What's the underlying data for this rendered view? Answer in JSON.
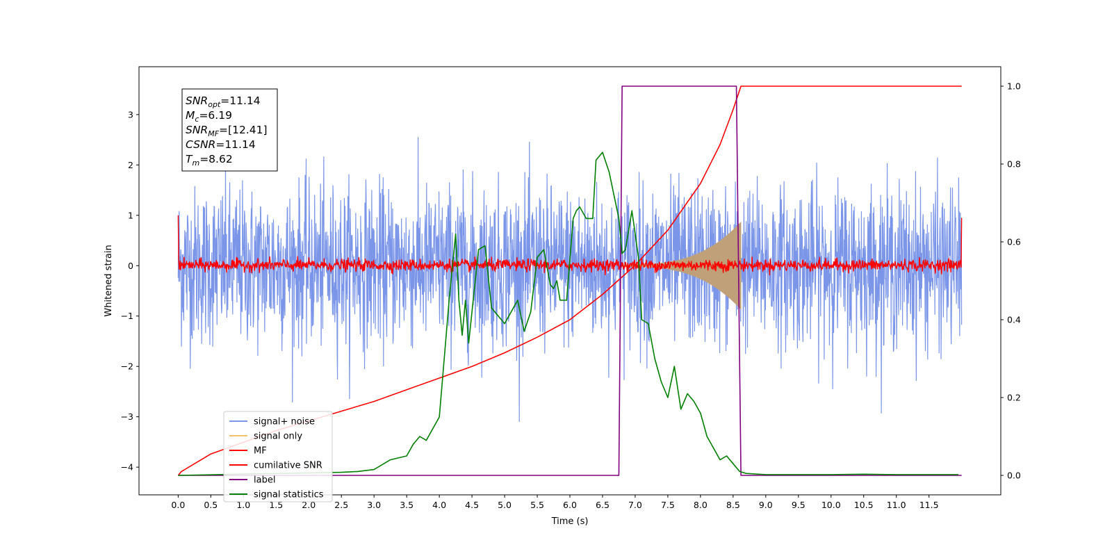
{
  "chart_data": {
    "type": "line",
    "xlabel": "Time (s)",
    "ylabel": "Whitened strain",
    "xlim": [
      -0.6,
      12.6
    ],
    "ylim": [
      -4.55,
      3.95
    ],
    "y2lim": [
      -0.05,
      1.05
    ],
    "x_ticks": [
      "0.0",
      "0.5",
      "1.0",
      "1.5",
      "2.0",
      "2.5",
      "3.0",
      "3.5",
      "4.0",
      "4.5",
      "5.0",
      "5.5",
      "6.0",
      "6.5",
      "7.0",
      "7.5",
      "8.0",
      "8.5",
      "9.0",
      "9.5",
      "10.0",
      "10.5",
      "11.0",
      "11.5"
    ],
    "y_ticks": [
      "3",
      "2",
      "1",
      "0",
      "−1",
      "−2",
      "−3",
      "−4"
    ],
    "y2_ticks": [
      "1.0",
      "0.8",
      "0.6",
      "0.4",
      "0.2",
      "0.0"
    ],
    "grid": false,
    "legend_position": "lower-left",
    "annotation": {
      "lines": [
        {
          "base": "SNR",
          "sub": "opt",
          "value": "=11.14"
        },
        {
          "base": "M",
          "sub": "c",
          "value": "=6.19"
        },
        {
          "base": "SNR",
          "sub": "MF",
          "value": "=[12.41]"
        },
        {
          "base": "CSNR",
          "sub": "",
          "value": "=11.14"
        },
        {
          "base": "T",
          "sub": "m",
          "value": "=8.62"
        }
      ]
    },
    "series": [
      {
        "name": "signal+ noise",
        "color": "#7b96e8",
        "axis": "left",
        "kind": "noise",
        "x_range": [
          0,
          12
        ],
        "sigma": 0.78
      },
      {
        "name": "signal only",
        "color": "#f5c26b",
        "axis": "left",
        "kind": "chirp",
        "x_range": [
          6.8,
          8.62
        ],
        "peak_amplitude": 0.85
      },
      {
        "name": "MF",
        "color": "#ff0000",
        "axis": "left",
        "kind": "noise",
        "x_range": [
          0,
          12
        ],
        "sigma": 0.06
      },
      {
        "name": "cumilative SNR",
        "color": "#ff0000",
        "axis": "right",
        "x": [
          0.0,
          0.05,
          0.5,
          1.0,
          1.5,
          2.0,
          2.5,
          3.0,
          3.5,
          4.0,
          4.5,
          5.0,
          5.5,
          6.0,
          6.5,
          7.0,
          7.5,
          8.0,
          8.3,
          8.5,
          8.62,
          12.0
        ],
        "y": [
          0.0,
          0.01,
          0.055,
          0.085,
          0.115,
          0.14,
          0.165,
          0.19,
          0.22,
          0.25,
          0.28,
          0.315,
          0.355,
          0.4,
          0.465,
          0.54,
          0.63,
          0.75,
          0.85,
          0.94,
          1.0,
          1.0
        ]
      },
      {
        "name": "label",
        "color": "#800080",
        "axis": "right",
        "x": [
          0.0,
          6.75,
          6.8,
          8.55,
          8.62,
          12.0
        ],
        "y": [
          0.0,
          0.0,
          1.0,
          1.0,
          0.0,
          0.0
        ]
      },
      {
        "name": "signal statistics",
        "color": "#008000",
        "axis": "right",
        "x": [
          0.0,
          2.5,
          2.75,
          3.0,
          3.25,
          3.5,
          3.6,
          3.7,
          3.8,
          3.9,
          4.0,
          4.1,
          4.15,
          4.25,
          4.3,
          4.35,
          4.4,
          4.45,
          4.55,
          4.6,
          4.7,
          4.8,
          4.9,
          5.0,
          5.1,
          5.2,
          5.3,
          5.4,
          5.5,
          5.6,
          5.7,
          5.75,
          5.8,
          5.85,
          5.95,
          6.05,
          6.1,
          6.15,
          6.25,
          6.35,
          6.4,
          6.5,
          6.6,
          6.75,
          6.8,
          6.85,
          6.95,
          7.05,
          7.1,
          7.2,
          7.3,
          7.4,
          7.5,
          7.6,
          7.7,
          7.8,
          7.9,
          8.0,
          8.1,
          8.2,
          8.3,
          8.4,
          8.5,
          8.6,
          8.7,
          9.0,
          10.0,
          10.5,
          11.0,
          11.5,
          11.95
        ],
        "y": [
          0.0,
          0.008,
          0.01,
          0.015,
          0.04,
          0.05,
          0.08,
          0.1,
          0.09,
          0.12,
          0.15,
          0.35,
          0.45,
          0.62,
          0.45,
          0.36,
          0.45,
          0.34,
          0.5,
          0.58,
          0.59,
          0.43,
          0.41,
          0.39,
          0.42,
          0.45,
          0.37,
          0.42,
          0.56,
          0.58,
          0.49,
          0.48,
          0.5,
          0.45,
          0.45,
          0.66,
          0.68,
          0.69,
          0.66,
          0.66,
          0.81,
          0.83,
          0.78,
          0.66,
          0.57,
          0.58,
          0.68,
          0.56,
          0.4,
          0.39,
          0.3,
          0.24,
          0.2,
          0.28,
          0.17,
          0.21,
          0.19,
          0.16,
          0.1,
          0.07,
          0.04,
          0.05,
          0.03,
          0.01,
          0.005,
          0.002,
          0.002,
          0.003,
          0.002,
          0.002,
          0.002
        ]
      }
    ]
  }
}
